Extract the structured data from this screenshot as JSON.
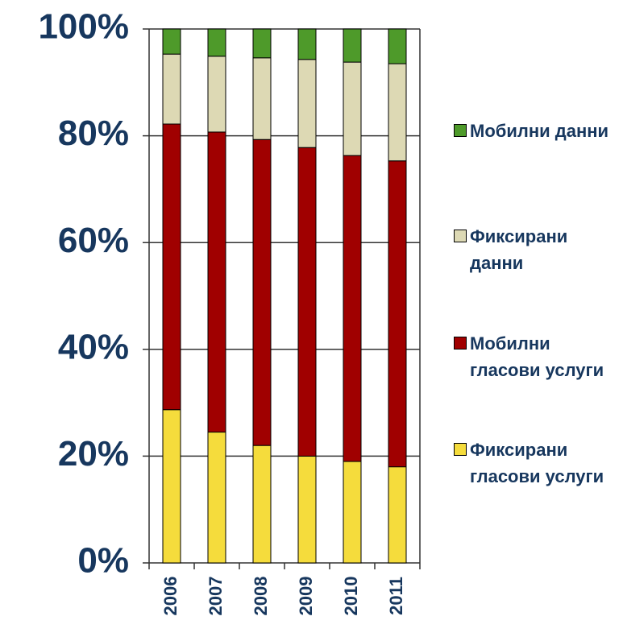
{
  "chart_data": {
    "type": "bar",
    "stacked": true,
    "categories": [
      "2006",
      "2007",
      "2008",
      "2009",
      "2010",
      "2011"
    ],
    "series": [
      {
        "name": "Фиксирани гласови услуги",
        "color": "#f5dc3c",
        "values": [
          28.7,
          24.5,
          22,
          20,
          19,
          18
        ]
      },
      {
        "name": "Мобилни гласови услуги",
        "color": "#a00000",
        "values": [
          53.5,
          56.2,
          57.3,
          57.8,
          57.3,
          57.3
        ]
      },
      {
        "name": "Фиксирани данни",
        "color": "#ddd9b4",
        "values": [
          13.1,
          14.2,
          15.3,
          16.5,
          17.5,
          18.2
        ]
      },
      {
        "name": "Мобилни данни",
        "color": "#4e9a2a",
        "values": [
          4.7,
          5.1,
          5.4,
          5.7,
          6.2,
          6.5
        ]
      }
    ],
    "ylim": [
      0,
      100
    ],
    "yticks": [
      {
        "value": 0,
        "label": "0%"
      },
      {
        "value": 20,
        "label": "20%"
      },
      {
        "value": 40,
        "label": "40%"
      },
      {
        "value": 60,
        "label": "60%"
      },
      {
        "value": 80,
        "label": "80%"
      },
      {
        "value": 100,
        "label": "100%"
      }
    ],
    "grid": true,
    "legend": "right"
  }
}
